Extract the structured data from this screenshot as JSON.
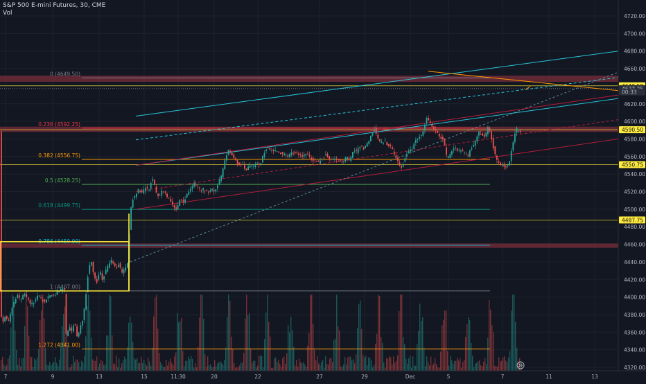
{
  "header": {
    "symbol_line": "S&P 500 E-mini Futures, 30, CME",
    "volume_label": "Vol"
  },
  "colors": {
    "background": "#131722",
    "grid": "#1e222d",
    "axis_text": "#b2b5be",
    "candle_up": "#26a69a",
    "candle_down": "#ef5350",
    "zone": "#7a2e3a",
    "highlight_label": "#ffeb3b",
    "fib_gray": "#787b86",
    "fib_red": "#f23645",
    "fib_orange": "#ff9800",
    "fib_green": "#4caf50",
    "fib_teal": "#089981",
    "fib_cyan": "#00bcd4",
    "channel_cyan": "#26c6da",
    "channel_crimson": "#b71c3c",
    "trend_orange": "#ff9800",
    "level_yellow": "#ffeb3b"
  },
  "chart_data": {
    "type": "candlestick",
    "title": "S&P 500 E-mini Futures, 30, CME",
    "ylim": [
      4315,
      4730
    ],
    "y_ticks": [
      4320,
      4340,
      4360,
      4380,
      4400,
      4420,
      4440,
      4460,
      4480,
      4500,
      4520,
      4540,
      4560,
      4580,
      4600,
      4620,
      4640,
      4660,
      4680,
      4700,
      4720
    ],
    "x_ticks": [
      "7",
      "9",
      "13",
      "15",
      "11:30",
      "20",
      "22",
      "27",
      "29",
      "Dec",
      "5",
      "7",
      "11",
      "13"
    ],
    "price_path": [
      [
        0,
        4385
      ],
      [
        4,
        4372
      ],
      [
        8,
        4378
      ],
      [
        12,
        4370
      ],
      [
        16,
        4382
      ],
      [
        20,
        4393
      ],
      [
        25,
        4402
      ],
      [
        30,
        4396
      ],
      [
        35,
        4405
      ],
      [
        40,
        4398
      ],
      [
        45,
        4392
      ],
      [
        50,
        4395
      ],
      [
        55,
        4402
      ],
      [
        60,
        4397
      ],
      [
        65,
        4395
      ],
      [
        70,
        4400
      ],
      [
        75,
        4402
      ],
      [
        80,
        4403
      ],
      [
        85,
        4407
      ],
      [
        90,
        4410
      ],
      [
        93,
        4412
      ],
      [
        96,
        4355
      ],
      [
        100,
        4367
      ],
      [
        104,
        4360
      ],
      [
        108,
        4373
      ],
      [
        112,
        4352
      ],
      [
        116,
        4365
      ],
      [
        120,
        4375
      ],
      [
        124,
        4400
      ],
      [
        128,
        4432
      ],
      [
        132,
        4440
      ],
      [
        136,
        4425
      ],
      [
        140,
        4418
      ],
      [
        144,
        4430
      ],
      [
        148,
        4420
      ],
      [
        152,
        4428
      ],
      [
        156,
        4435
      ],
      [
        160,
        4442
      ],
      [
        164,
        4437
      ],
      [
        168,
        4432
      ],
      [
        172,
        4438
      ],
      [
        176,
        4427
      ],
      [
        180,
        4432
      ],
      [
        185,
        4440
      ],
      [
        188,
        4495
      ],
      [
        192,
        4512
      ],
      [
        196,
        4517
      ],
      [
        200,
        4522
      ],
      [
        205,
        4518
      ],
      [
        210,
        4525
      ],
      [
        215,
        4522
      ],
      [
        220,
        4537
      ],
      [
        225,
        4520
      ],
      [
        230,
        4514
      ],
      [
        235,
        4522
      ],
      [
        240,
        4516
      ],
      [
        245,
        4510
      ],
      [
        250,
        4505
      ],
      [
        255,
        4500
      ],
      [
        260,
        4512
      ],
      [
        265,
        4508
      ],
      [
        270,
        4516
      ],
      [
        275,
        4522
      ],
      [
        280,
        4530
      ],
      [
        285,
        4527
      ],
      [
        290,
        4520
      ],
      [
        295,
        4524
      ],
      [
        300,
        4518
      ],
      [
        305,
        4524
      ],
      [
        310,
        4520
      ],
      [
        315,
        4530
      ],
      [
        320,
        4538
      ],
      [
        325,
        4556
      ],
      [
        330,
        4567
      ],
      [
        335,
        4562
      ],
      [
        340,
        4555
      ],
      [
        345,
        4550
      ],
      [
        350,
        4552
      ],
      [
        355,
        4542
      ],
      [
        360,
        4550
      ],
      [
        365,
        4548
      ],
      [
        370,
        4552
      ],
      [
        375,
        4550
      ],
      [
        380,
        4562
      ],
      [
        385,
        4570
      ],
      [
        390,
        4568
      ],
      [
        395,
        4566
      ],
      [
        400,
        4567
      ],
      [
        405,
        4564
      ],
      [
        410,
        4562
      ],
      [
        415,
        4560
      ],
      [
        420,
        4563
      ],
      [
        425,
        4565
      ],
      [
        430,
        4562
      ],
      [
        435,
        4560
      ],
      [
        440,
        4563
      ],
      [
        445,
        4562
      ],
      [
        450,
        4557
      ],
      [
        455,
        4555
      ],
      [
        460,
        4553
      ],
      [
        465,
        4558
      ],
      [
        470,
        4562
      ],
      [
        475,
        4558
      ],
      [
        480,
        4555
      ],
      [
        485,
        4558
      ],
      [
        490,
        4556
      ],
      [
        495,
        4553
      ],
      [
        500,
        4560
      ],
      [
        505,
        4555
      ],
      [
        510,
        4568
      ],
      [
        515,
        4565
      ],
      [
        520,
        4572
      ],
      [
        525,
        4568
      ],
      [
        530,
        4575
      ],
      [
        535,
        4582
      ],
      [
        540,
        4593
      ],
      [
        545,
        4580
      ],
      [
        550,
        4575
      ],
      [
        555,
        4578
      ],
      [
        560,
        4573
      ],
      [
        565,
        4570
      ],
      [
        570,
        4560
      ],
      [
        575,
        4552
      ],
      [
        580,
        4548
      ],
      [
        585,
        4560
      ],
      [
        590,
        4566
      ],
      [
        595,
        4568
      ],
      [
        600,
        4580
      ],
      [
        605,
        4582
      ],
      [
        610,
        4586
      ],
      [
        615,
        4604
      ],
      [
        620,
        4598
      ],
      [
        625,
        4592
      ],
      [
        630,
        4588
      ],
      [
        635,
        4582
      ],
      [
        640,
        4579
      ],
      [
        645,
        4558
      ],
      [
        650,
        4562
      ],
      [
        655,
        4570
      ],
      [
        660,
        4568
      ],
      [
        665,
        4566
      ],
      [
        670,
        4565
      ],
      [
        675,
        4560
      ],
      [
        680,
        4570
      ],
      [
        685,
        4575
      ],
      [
        690,
        4588
      ],
      [
        695,
        4585
      ],
      [
        700,
        4582
      ],
      [
        705,
        4595
      ],
      [
        710,
        4578
      ],
      [
        715,
        4560
      ],
      [
        720,
        4552
      ],
      [
        725,
        4550
      ],
      [
        730,
        4548
      ],
      [
        735,
        4552
      ],
      [
        740,
        4575
      ],
      [
        745,
        4592
      ],
      [
        750,
        4588
      ]
    ],
    "series": [
      {
        "name": "Vol",
        "values": []
      }
    ],
    "fib_levels": [
      {
        "label": "0 (4649.50)",
        "value": 4649.5,
        "color": "#787b86"
      },
      {
        "label": "0.236 (4592.25)",
        "value": 4592.25,
        "color": "#f23645"
      },
      {
        "label": "0.382 (4556.75)",
        "value": 4556.75,
        "color": "#ff9800"
      },
      {
        "label": "0.5 (4528.25)",
        "value": 4528.25,
        "color": "#4caf50"
      },
      {
        "label": "0.618 (4499.75)",
        "value": 4499.75,
        "color": "#089981"
      },
      {
        "label": "0.786 (4459.00)",
        "value": 4459.0,
        "color": "#00bcd4"
      },
      {
        "label": "1 (4407.00)",
        "value": 4407.0,
        "color": "#787b86"
      },
      {
        "label": "1.272 (4341.00)",
        "value": 4341.0,
        "color": "#ff9800"
      }
    ],
    "horizontal_levels": [
      4640.5,
      4590.5,
      4550.75,
      4487.75
    ],
    "zones": [
      {
        "from": 4645,
        "to": 4652
      },
      {
        "from": 4588,
        "to": 4594
      },
      {
        "from": 4456,
        "to": 4461
      }
    ],
    "price_labels": [
      {
        "text": "4640.50",
        "value": 4640.5,
        "style": "yellow"
      },
      {
        "text": "4637.25",
        "value": 4637.25,
        "style": "dark"
      },
      {
        "text": "00:33",
        "value": 4633.5,
        "style": "dark-sub"
      },
      {
        "text": "4590.50",
        "value": 4590.5,
        "style": "yellow"
      },
      {
        "text": "4550.75",
        "value": 4550.75,
        "style": "yellow"
      },
      {
        "text": "4487.75",
        "value": 4487.75,
        "style": "yellow"
      }
    ]
  }
}
